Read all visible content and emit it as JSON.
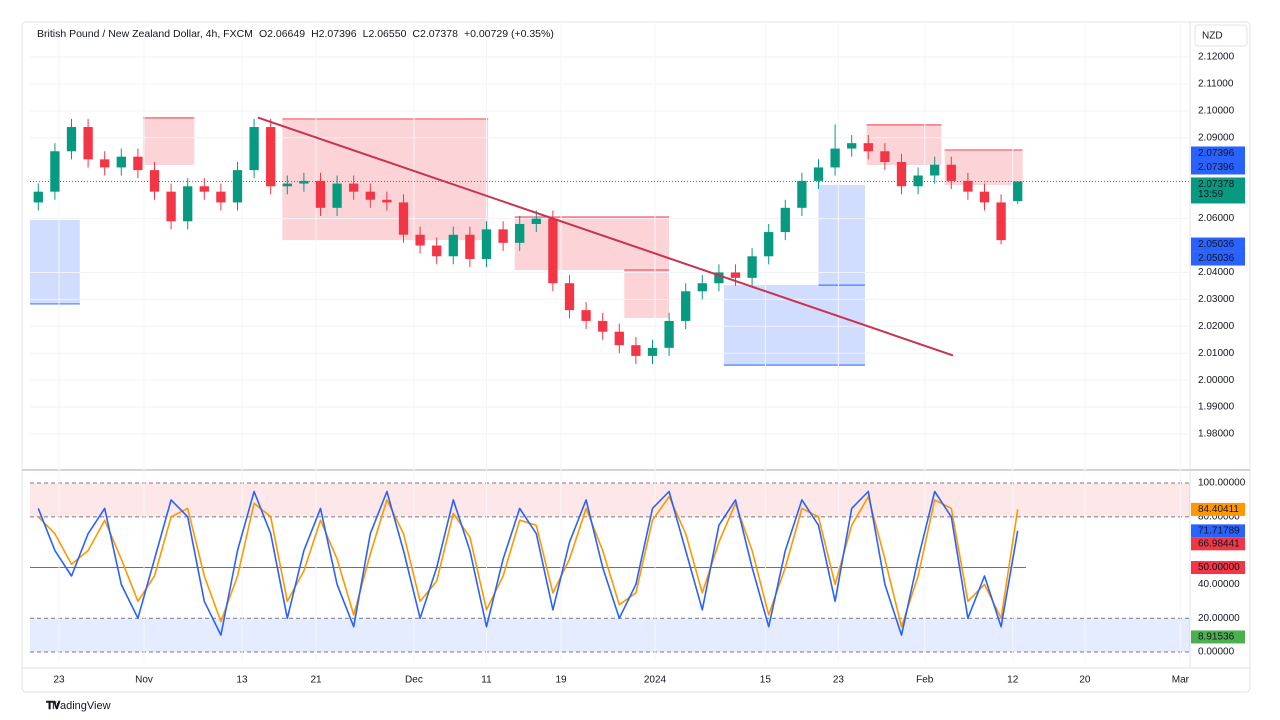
{
  "header": {
    "title": "British Pound / New Zealand Dollar, 4h, FXCM",
    "stats": [
      "O2.06649",
      "H2.07396",
      "L2.06550",
      "C2.07378",
      "+0.00729 (+0.35%)"
    ]
  },
  "currency": "NZD",
  "countdown": "13:59",
  "brand": "TradingView",
  "chart_data": [
    {
      "type": "candlestick",
      "up_color": "#089981",
      "down_color": "#f23645",
      "grid": true,
      "xlim": [
        0,
        69.88
      ],
      "xticks": [
        {
          "value": 1.75,
          "label": "23"
        },
        {
          "value": 6.87,
          "label": "Nov"
        },
        {
          "value": 12.77,
          "label": "13"
        },
        {
          "value": 17.23,
          "label": "21"
        },
        {
          "value": 23.13,
          "label": "Dec"
        },
        {
          "value": 27.5,
          "label": "11"
        },
        {
          "value": 31.99,
          "label": "19"
        },
        {
          "value": 37.65,
          "label": "2024"
        },
        {
          "value": 44.3,
          "label": "15"
        },
        {
          "value": 48.7,
          "label": "23"
        },
        {
          "value": 53.9,
          "label": "Feb"
        },
        {
          "value": 59.2,
          "label": "12"
        },
        {
          "value": 63.55,
          "label": "20"
        },
        {
          "value": 69.3,
          "label": "Mar"
        }
      ],
      "ylim": [
        1.9685,
        2.133
      ],
      "yticks": [
        {
          "value": 2.12,
          "label": "2.12000"
        },
        {
          "value": 2.11,
          "label": "2.11000"
        },
        {
          "value": 2.1,
          "label": "2.10000"
        },
        {
          "value": 2.09,
          "label": "2.09000"
        },
        {
          "value": 2.06,
          "label": "2.06000"
        },
        {
          "value": 2.04,
          "label": "2.04000"
        },
        {
          "value": 2.03,
          "label": "2.03000"
        },
        {
          "value": 2.02,
          "label": "2.02000"
        },
        {
          "value": 2.01,
          "label": "2.01000"
        },
        {
          "value": 2.0,
          "label": "2.00000"
        },
        {
          "value": 1.99,
          "label": "1.99000"
        },
        {
          "value": 1.98,
          "label": "1.98000"
        }
      ],
      "ohlc": [
        [
          2.066,
          2.073,
          2.063,
          2.07
        ],
        [
          2.07,
          2.088,
          2.067,
          2.085
        ],
        [
          2.085,
          2.097,
          2.082,
          2.094
        ],
        [
          2.094,
          2.097,
          2.079,
          2.082
        ],
        [
          2.082,
          2.085,
          2.076,
          2.079
        ],
        [
          2.079,
          2.086,
          2.076,
          2.083
        ],
        [
          2.083,
          2.086,
          2.075,
          2.078
        ],
        [
          2.078,
          2.081,
          2.067,
          2.07
        ],
        [
          2.07,
          2.073,
          2.056,
          2.059
        ],
        [
          2.059,
          2.075,
          2.056,
          2.072
        ],
        [
          2.072,
          2.075,
          2.067,
          2.07
        ],
        [
          2.07,
          2.073,
          2.063,
          2.066
        ],
        [
          2.066,
          2.081,
          2.063,
          2.078
        ],
        [
          2.078,
          2.097,
          2.075,
          2.094
        ],
        [
          2.094,
          2.097,
          2.069,
          2.072
        ],
        [
          2.072,
          2.076,
          2.069,
          2.073
        ],
        [
          2.073,
          2.077,
          2.07,
          2.074
        ],
        [
          2.074,
          2.077,
          2.061,
          2.064
        ],
        [
          2.064,
          2.076,
          2.061,
          2.073
        ],
        [
          2.073,
          2.076,
          2.067,
          2.07
        ],
        [
          2.07,
          2.073,
          2.064,
          2.067
        ],
        [
          2.067,
          2.07,
          2.063,
          2.066
        ],
        [
          2.066,
          2.069,
          2.051,
          2.054
        ],
        [
          2.054,
          2.057,
          2.047,
          2.05
        ],
        [
          2.05,
          2.053,
          2.043,
          2.046
        ],
        [
          2.046,
          2.057,
          2.043,
          2.054
        ],
        [
          2.054,
          2.057,
          2.042,
          2.045
        ],
        [
          2.045,
          2.059,
          2.042,
          2.056
        ],
        [
          2.056,
          2.059,
          2.048,
          2.051
        ],
        [
          2.051,
          2.061,
          2.048,
          2.058
        ],
        [
          2.058,
          2.063,
          2.055,
          2.06
        ],
        [
          2.06,
          2.063,
          2.033,
          2.036
        ],
        [
          2.036,
          2.039,
          2.023,
          2.026
        ],
        [
          2.026,
          2.029,
          2.019,
          2.022
        ],
        [
          2.022,
          2.025,
          2.015,
          2.018
        ],
        [
          2.018,
          2.021,
          2.01,
          2.013
        ],
        [
          2.013,
          2.016,
          2.006,
          2.009
        ],
        [
          2.009,
          2.015,
          2.006,
          2.012
        ],
        [
          2.012,
          2.025,
          2.009,
          2.022
        ],
        [
          2.022,
          2.036,
          2.019,
          2.033
        ],
        [
          2.033,
          2.039,
          2.03,
          2.036
        ],
        [
          2.036,
          2.043,
          2.033,
          2.04
        ],
        [
          2.04,
          2.043,
          2.035,
          2.038
        ],
        [
          2.038,
          2.049,
          2.035,
          2.046
        ],
        [
          2.046,
          2.058,
          2.043,
          2.055
        ],
        [
          2.055,
          2.067,
          2.052,
          2.064
        ],
        [
          2.064,
          2.077,
          2.061,
          2.074
        ],
        [
          2.074,
          2.082,
          2.071,
          2.079
        ],
        [
          2.079,
          2.095,
          2.076,
          2.086
        ],
        [
          2.086,
          2.091,
          2.083,
          2.088
        ],
        [
          2.088,
          2.091,
          2.082,
          2.085
        ],
        [
          2.085,
          2.088,
          2.078,
          2.081
        ],
        [
          2.081,
          2.084,
          2.069,
          2.072
        ],
        [
          2.072,
          2.079,
          2.069,
          2.076
        ],
        [
          2.076,
          2.083,
          2.073,
          2.08
        ],
        [
          2.08,
          2.083,
          2.071,
          2.074
        ],
        [
          2.074,
          2.077,
          2.067,
          2.07
        ],
        [
          2.07,
          2.073,
          2.063,
          2.066
        ],
        [
          2.066,
          2.069,
          2.0504,
          2.052
        ],
        [
          2.06649,
          2.07396,
          2.0655,
          2.07378
        ]
      ],
      "zones": [
        {
          "x": [
            6.8,
            9.9
          ],
          "y": [
            2.0974,
            2.0799
          ],
          "color": "#f23645"
        },
        {
          "x": [
            15.2,
            27.6
          ],
          "y": [
            2.097,
            2.052
          ],
          "color": "#f23645"
        },
        {
          "x": [
            29.2,
            38.5
          ],
          "y": [
            2.0606,
            2.0409
          ],
          "color": "#f23645"
        },
        {
          "x": [
            35.8,
            38.5
          ],
          "y": [
            2.0409,
            2.0231
          ],
          "color": "#f23645"
        },
        {
          "x": [
            50.4,
            54.9
          ],
          "y": [
            2.0948,
            2.0799
          ],
          "color": "#f23645"
        },
        {
          "x": [
            55.1,
            59.8
          ],
          "y": [
            2.0855,
            2.0725
          ],
          "color": "#f23645"
        },
        {
          "x": [
            0,
            3
          ],
          "y": [
            2.0595,
            2.0283
          ],
          "color": "#2962ff"
        },
        {
          "x": [
            41.8,
            50.3
          ],
          "y": [
            2.0353,
            2.0056
          ],
          "color": "#2962ff"
        },
        {
          "x": [
            47.5,
            50.3
          ],
          "y": [
            2.0725,
            2.0353
          ],
          "color": "#2962ff"
        }
      ],
      "trendline": {
        "from": [
          13.73,
          2.0975
        ],
        "to": [
          55.6,
          2.0092
        ],
        "color": "#c8334d"
      },
      "last_price": {
        "value": 2.07378,
        "color": "#089981"
      },
      "badges": [
        {
          "value": 2.07396,
          "label": "2.07396",
          "color": "#2962ff"
        },
        {
          "value": 2.07396,
          "label": "2.07396",
          "color": "#2962ff"
        },
        {
          "value": 2.07378,
          "label": "2.07378",
          "color": "#089981"
        },
        {
          "value": 2.05036,
          "label": "2.05036",
          "color": "#2962ff"
        },
        {
          "value": 2.05036,
          "label": "2.05036",
          "color": "#2962ff"
        }
      ]
    },
    {
      "type": "line",
      "xlim": [
        0,
        69.88
      ],
      "ylim": [
        -5.9,
        101.8
      ],
      "yticks": [
        {
          "value": 100,
          "label": "100.00000"
        },
        {
          "value": 80,
          "label": "80.00000"
        },
        {
          "value": 40,
          "label": "40.00000"
        },
        {
          "value": 20,
          "label": "20.00000"
        },
        {
          "value": 0,
          "label": "0.00000"
        }
      ],
      "bands": [
        {
          "from": 80,
          "to": 100,
          "color": "#f23645"
        },
        {
          "from": 0,
          "to": 20,
          "color": "#2962ff"
        }
      ],
      "midline": {
        "value": 50,
        "color": "#f23645"
      },
      "series": [
        {
          "color": "#ff9800",
          "values": [
            80,
            70,
            52,
            60,
            78,
            55,
            30,
            45,
            80,
            85,
            45,
            18,
            45,
            88,
            80,
            30,
            48,
            78,
            55,
            22,
            58,
            90,
            70,
            30,
            42,
            82,
            68,
            25,
            45,
            78,
            75,
            35,
            55,
            85,
            60,
            28,
            35,
            78,
            92,
            70,
            35,
            65,
            88,
            60,
            22,
            50,
            85,
            80,
            40,
            75,
            92,
            55,
            15,
            45,
            90,
            85,
            30,
            40,
            20,
            84.40411
          ]
        },
        {
          "color": "#2962ff",
          "values": [
            85,
            60,
            45,
            70,
            85,
            40,
            20,
            55,
            90,
            80,
            30,
            10,
            60,
            95,
            70,
            20,
            60,
            85,
            40,
            15,
            70,
            95,
            60,
            20,
            50,
            90,
            60,
            15,
            55,
            85,
            70,
            25,
            65,
            90,
            50,
            20,
            40,
            85,
            95,
            60,
            25,
            75,
            90,
            50,
            15,
            60,
            90,
            75,
            30,
            85,
            95,
            40,
            10,
            55,
            95,
            80,
            20,
            45,
            15,
            71.71789
          ]
        }
      ],
      "badges": [
        {
          "value": 84.40411,
          "label": "84.40411",
          "color": "#ff9800"
        },
        {
          "value": 71.71789,
          "label": "71.71789",
          "color": "#2962ff"
        },
        {
          "value": 66.98441,
          "label": "66.98441",
          "color": "#f23645"
        },
        {
          "value": 50,
          "label": "50.00000",
          "color": "#f23645"
        },
        {
          "value": 8.91536,
          "label": "8.91536",
          "color": "#4caf50"
        }
      ]
    }
  ]
}
